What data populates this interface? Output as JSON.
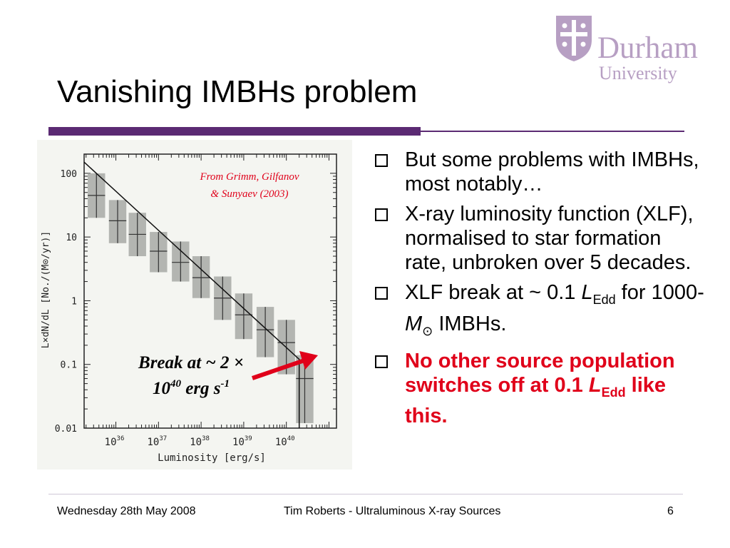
{
  "slide": {
    "title": "Vanishing IMBHs problem",
    "logo": {
      "name": "Durham",
      "sub": "University"
    },
    "footer": {
      "date": "Wednesday 28th May 2008",
      "author": "Tim Roberts - Ultraluminous X-ray Sources",
      "page": "6"
    },
    "bullets": [
      {
        "text": "But some problems with IMBHs, most notably…"
      },
      {
        "text": "X-ray luminosity function (XLF), normalised to star formation rate, unbroken over 5 decades."
      },
      {
        "pre": "XLF break at ~ 0.1 ",
        "L": "L",
        "Lsub": "Edd",
        "mid": " for 1000-",
        "M": "M",
        "sun": "⊙",
        "post": " IMBHs."
      },
      {
        "pre": "No other source population switches off at 0.1 ",
        "L": "L",
        "Lsub": "Edd",
        "post": " like this."
      }
    ],
    "colors": {
      "accent": "#5b2a73",
      "logo": "#b79fc3",
      "highlight": "#e0001a"
    }
  },
  "chart_data": {
    "type": "line",
    "xlabel": "Luminosity [erg/s]",
    "ylabel": "L×dN/dL [No./(M⊙/yr)]",
    "xscale": "log",
    "yscale": "log",
    "xlim": [
      1.8e+35,
      1.5e+41
    ],
    "ylim": [
      0.01,
      200
    ],
    "x_ticks": [
      1e+36,
      1e+37,
      1e+38,
      1e+39,
      1e+40
    ],
    "x_tick_labels": [
      "10",
      "10",
      "10",
      "10",
      "10"
    ],
    "x_tick_exps": [
      "36",
      "37",
      "38",
      "39",
      "40"
    ],
    "y_ticks": [
      100,
      10,
      1,
      0.1,
      0.01
    ],
    "y_tick_labels": [
      "100",
      "10",
      "1",
      "0.1",
      "0.01"
    ],
    "source_note": [
      "From Grimm, Gilfanov",
      "& Sunyaev (2003)"
    ],
    "annotation": {
      "line1": "Break at ~ 2 ×",
      "line2_base": "10",
      "line2_exp": "40",
      "line2_unit": " erg s",
      "line2_unit_exp": "-1"
    },
    "series": [
      {
        "x": [
          3.5e+35,
          1.1e+36,
          3.2e+36,
          1e+37,
          3.3e+37,
          1e+38,
          3.2e+38,
          1e+39,
          3.2e+39,
          1e+40,
          2.7e+40
        ],
        "y": [
          45,
          18,
          11,
          6,
          4,
          2.3,
          1.1,
          0.6,
          0.35,
          0.22,
          0.06
        ],
        "ylo": [
          20,
          8,
          5,
          2.8,
          2,
          1.1,
          0.5,
          0.25,
          0.13,
          0.07,
          0.012
        ],
        "yhi": [
          100,
          38,
          24,
          12,
          8.5,
          5,
          2.4,
          1.3,
          0.8,
          0.5,
          0.14
        ]
      }
    ],
    "fit_line": {
      "x": [
        1.8e+35,
        2e+40,
        2e+40
      ],
      "y": [
        150,
        0.12,
        0.01
      ]
    }
  }
}
